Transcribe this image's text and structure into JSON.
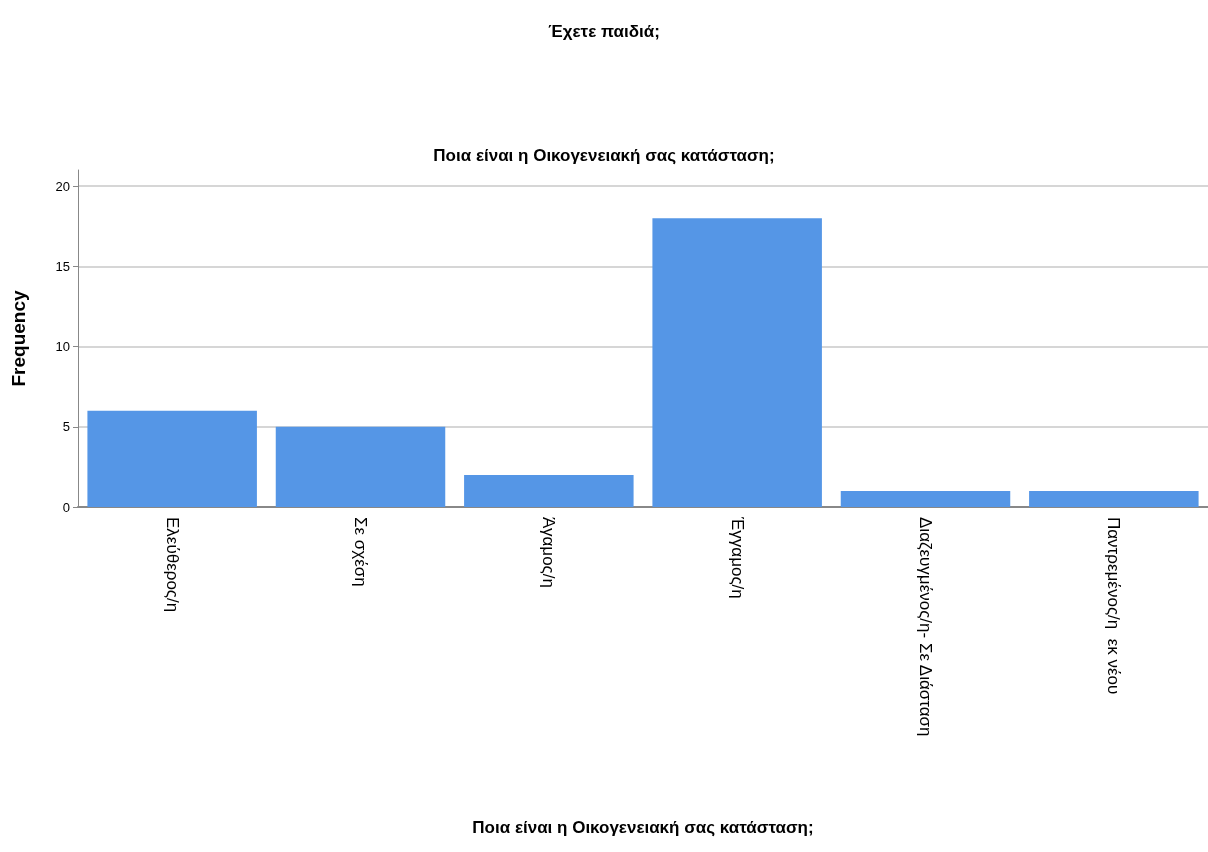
{
  "chart_data": {
    "type": "bar",
    "title": "Έχετε παιδιά;",
    "subtitle": "Ποια είναι η Οικογενειακή σας κατάσταση;",
    "xlabel": "Ποια είναι η Οικογενειακή σας κατάσταση;",
    "ylabel": "Frequency",
    "categories": [
      "Ελεύθερος/η",
      "Σε σχέση",
      "Άγαμος/η",
      "Έγγαμος/η",
      "Διαζευγμένος/η- Σε Διάσταση",
      "Παντρεμένος/η  εκ νέου"
    ],
    "values": [
      6,
      5,
      2,
      18,
      1,
      1
    ],
    "color": "#5596e6",
    "ylim": [
      0,
      21
    ],
    "yticks": [
      0,
      5,
      10,
      15,
      20
    ],
    "grid": "y"
  }
}
